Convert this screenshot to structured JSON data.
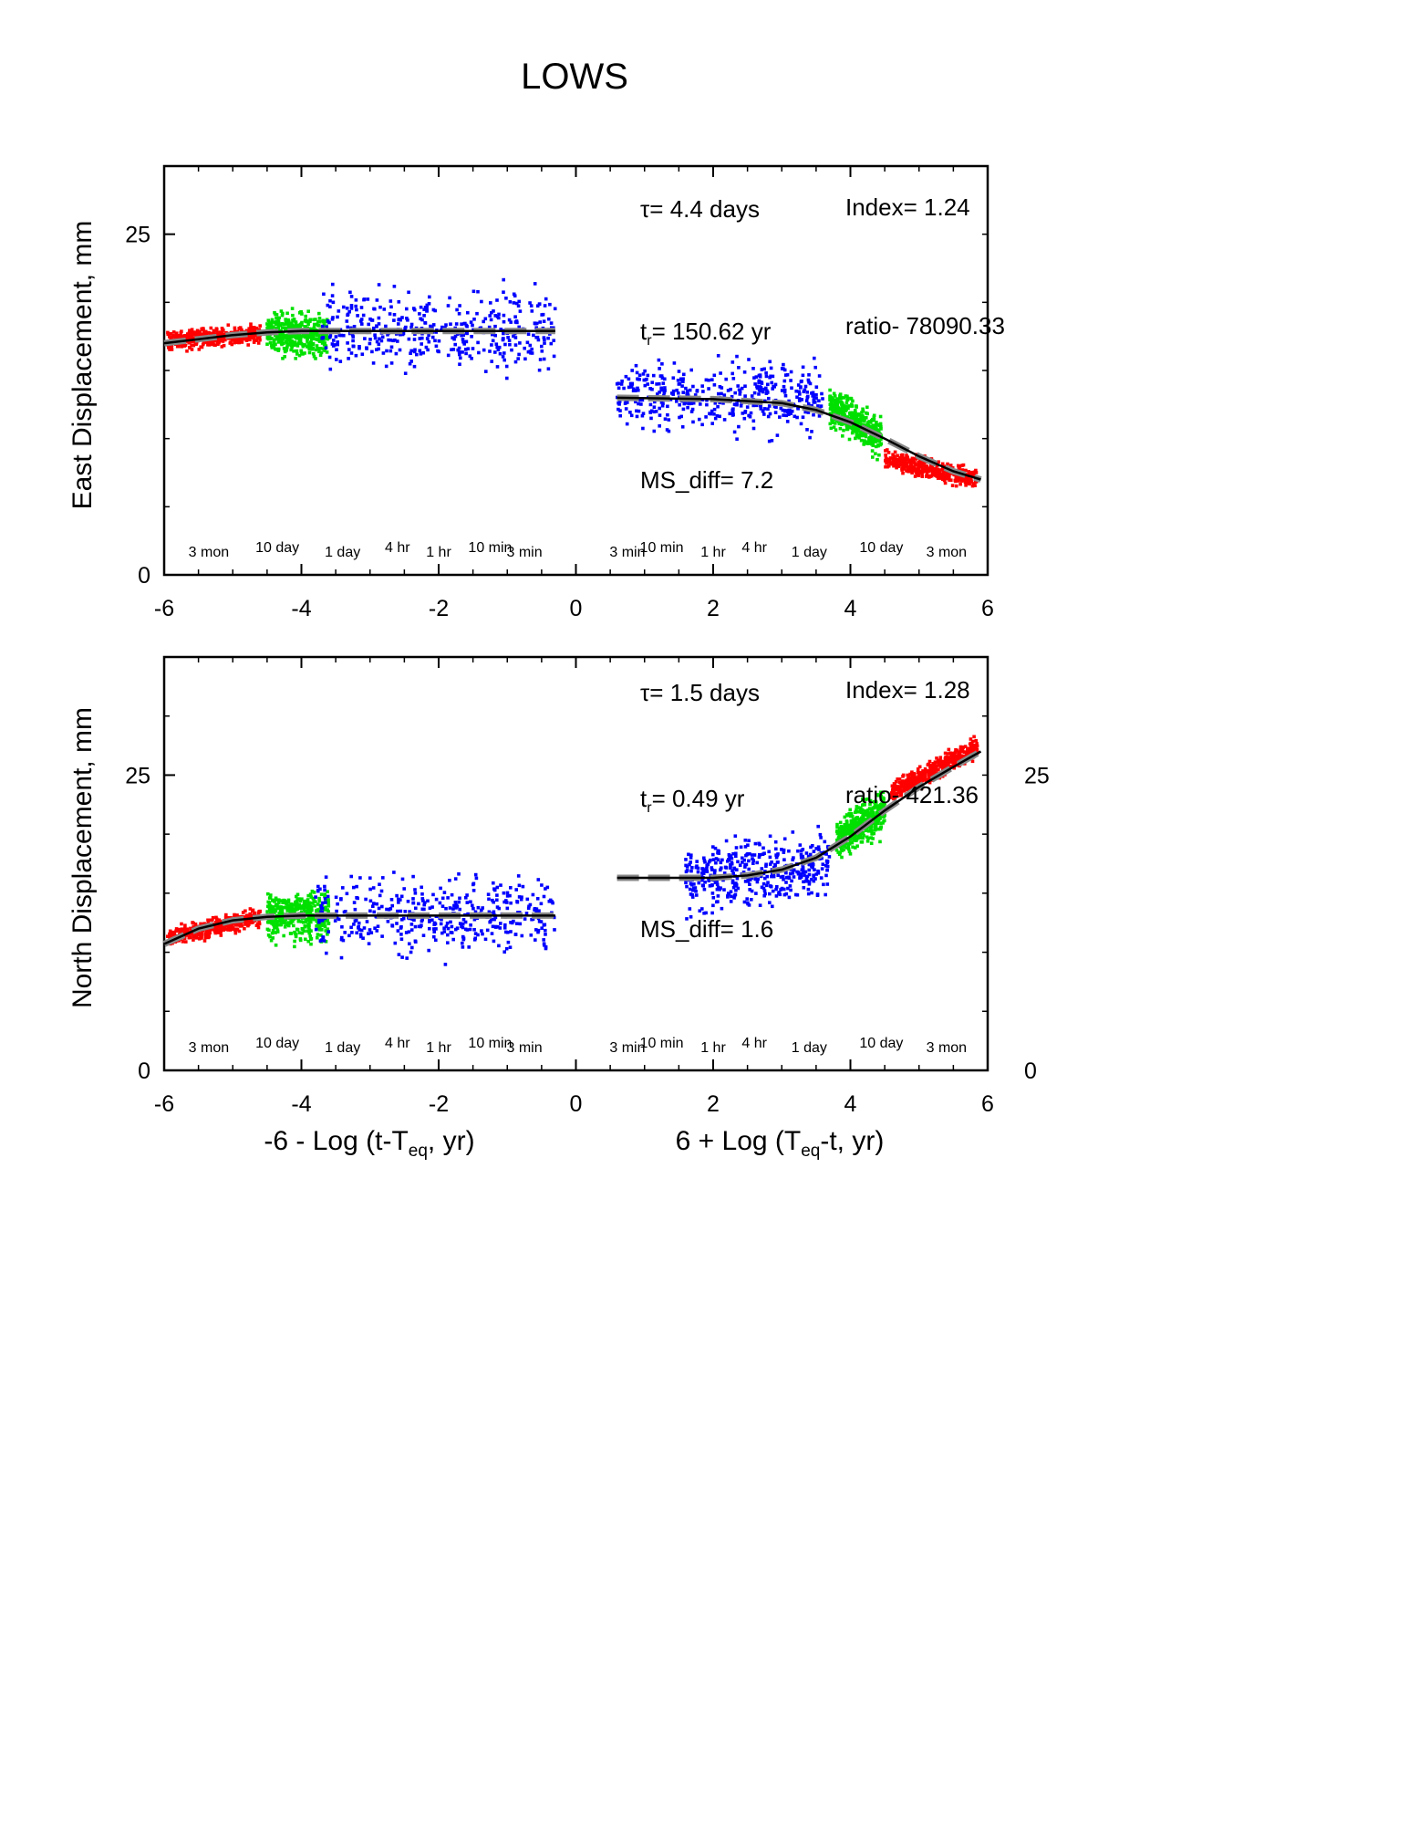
{
  "title": "LOWS",
  "chart_data": [
    {
      "type": "scatter",
      "ylabel": "East Displacement, mm",
      "xlabel_left": "",
      "xlabel_right": "",
      "xlim": [
        -6,
        6
      ],
      "ylim": [
        0,
        30
      ],
      "xticks": [
        -6,
        -4,
        -2,
        0,
        2,
        4,
        6
      ],
      "yticks_left": [
        0,
        25
      ],
      "yticks_right": [],
      "annotations": {
        "tau": "= 4.4 days",
        "tau_symbol": "τ",
        "index": "Index= 1.24",
        "tr_main": "t",
        "tr_sub": "r",
        "tr_value": "= 150.62 yr",
        "ratio": "ratio- 78090.33",
        "msdiff": "MS_diff= 7.2"
      },
      "time_scale_left": [
        "3 mon",
        "10 day",
        "1 day",
        "4 hr",
        "1 hr",
        "10 min",
        "3 min"
      ],
      "time_scale_right": [
        "3 min",
        "10 min",
        "1 hr",
        "4 hr",
        "1 day",
        "10 day",
        "3 mon"
      ],
      "series": [
        {
          "color": "#ff0000",
          "segments": [
            {
              "x": [
                -5.95,
                -4.6
              ],
              "y": [
                17.2,
                17.7
              ],
              "spread": 1.0
            },
            {
              "x": [
                4.5,
                5.85
              ],
              "y": [
                8.5,
                7.0
              ],
              "spread": 1.0
            }
          ]
        },
        {
          "color": "#00e000",
          "segments": [
            {
              "x": [
                -4.5,
                -3.6
              ],
              "y": [
                17.8,
                17.5
              ],
              "spread": 2.2
            },
            {
              "x": [
                3.7,
                4.45
              ],
              "y": [
                12.5,
                10.0
              ],
              "spread": 2.0
            }
          ]
        },
        {
          "color": "#0000ff",
          "segments": [
            {
              "x": [
                -3.7,
                -0.3
              ],
              "y": [
                18.0,
                18.0
              ],
              "spread": 3.0
            },
            {
              "x": [
                0.6,
                3.6
              ],
              "y": [
                13.2,
                13.0
              ],
              "spread": 2.5
            }
          ]
        }
      ],
      "fit_left": {
        "x": [
          -6,
          -5.5,
          -5,
          -4.5,
          -4,
          -3,
          -2,
          -0.3
        ],
        "y": [
          17.0,
          17.3,
          17.6,
          17.8,
          17.9,
          17.9,
          17.9,
          17.9
        ]
      },
      "fit_right": {
        "x": [
          0.6,
          2,
          3,
          3.5,
          4,
          4.5,
          5,
          5.5,
          5.9
        ],
        "y": [
          13.0,
          12.9,
          12.6,
          12.1,
          11.2,
          10.0,
          8.7,
          7.6,
          7.0
        ]
      }
    },
    {
      "type": "scatter",
      "ylabel": "North Displacement, mm",
      "xlabel_left": "-6 - Log (t-T",
      "xlabel_left_sub": "eq",
      "xlabel_left_tail": ", yr)",
      "xlabel_right": "6 + Log (T",
      "xlabel_right_sub": "eq",
      "xlabel_right_tail": "-t, yr)",
      "xlim": [
        -6,
        6
      ],
      "ylim": [
        0,
        35
      ],
      "xticks": [
        -6,
        -4,
        -2,
        0,
        2,
        4,
        6
      ],
      "yticks_left": [
        0,
        25
      ],
      "yticks_right": [
        0,
        25
      ],
      "annotations": {
        "tau": "= 1.5 days",
        "tau_symbol": "τ",
        "index": "Index= 1.28",
        "tr_main": "t",
        "tr_sub": "r",
        "tr_value": "= 0.49 yr",
        "ratio": "ratio- 421.36",
        "msdiff": "MS_diff= 1.6"
      },
      "time_scale_left": [
        "3 mon",
        "10 day",
        "1 day",
        "4 hr",
        "1 hr",
        "10 min",
        "3 min"
      ],
      "time_scale_right": [
        "3 min",
        "10 min",
        "1 hr",
        "4 hr",
        "1 day",
        "10 day",
        "3 mon"
      ],
      "series": [
        {
          "color": "#ff0000",
          "segments": [
            {
              "x": [
                -5.95,
                -4.6
              ],
              "y": [
                11.2,
                13.0
              ],
              "spread": 1.0
            },
            {
              "x": [
                4.6,
                5.85
              ],
              "y": [
                23.5,
                27.5
              ],
              "spread": 1.2
            }
          ]
        },
        {
          "color": "#00e000",
          "segments": [
            {
              "x": [
                -4.5,
                -3.6
              ],
              "y": [
                13.2,
                13.0
              ],
              "spread": 2.8
            },
            {
              "x": [
                3.8,
                4.5
              ],
              "y": [
                19.5,
                22.0
              ],
              "spread": 2.5
            }
          ]
        },
        {
          "color": "#0000ff",
          "segments": [
            {
              "x": [
                -3.8,
                -0.3
              ],
              "y": [
                13.0,
                13.0
              ],
              "spread": 3.2
            },
            {
              "x": [
                1.6,
                3.7
              ],
              "y": [
                16.0,
                17.5
              ],
              "spread": 2.8
            }
          ]
        }
      ],
      "fit_left": {
        "x": [
          -6,
          -5.5,
          -5,
          -4.5,
          -4,
          -3,
          -2,
          -0.3
        ],
        "y": [
          10.7,
          12.0,
          12.7,
          13.0,
          13.1,
          13.1,
          13.1,
          13.1
        ]
      },
      "fit_right": {
        "x": [
          0.6,
          2,
          2.5,
          3,
          3.5,
          4,
          4.5,
          5,
          5.5,
          5.9
        ],
        "y": [
          16.3,
          16.3,
          16.5,
          17.0,
          18.0,
          19.8,
          22.0,
          24.0,
          25.7,
          27.0
        ]
      }
    }
  ]
}
